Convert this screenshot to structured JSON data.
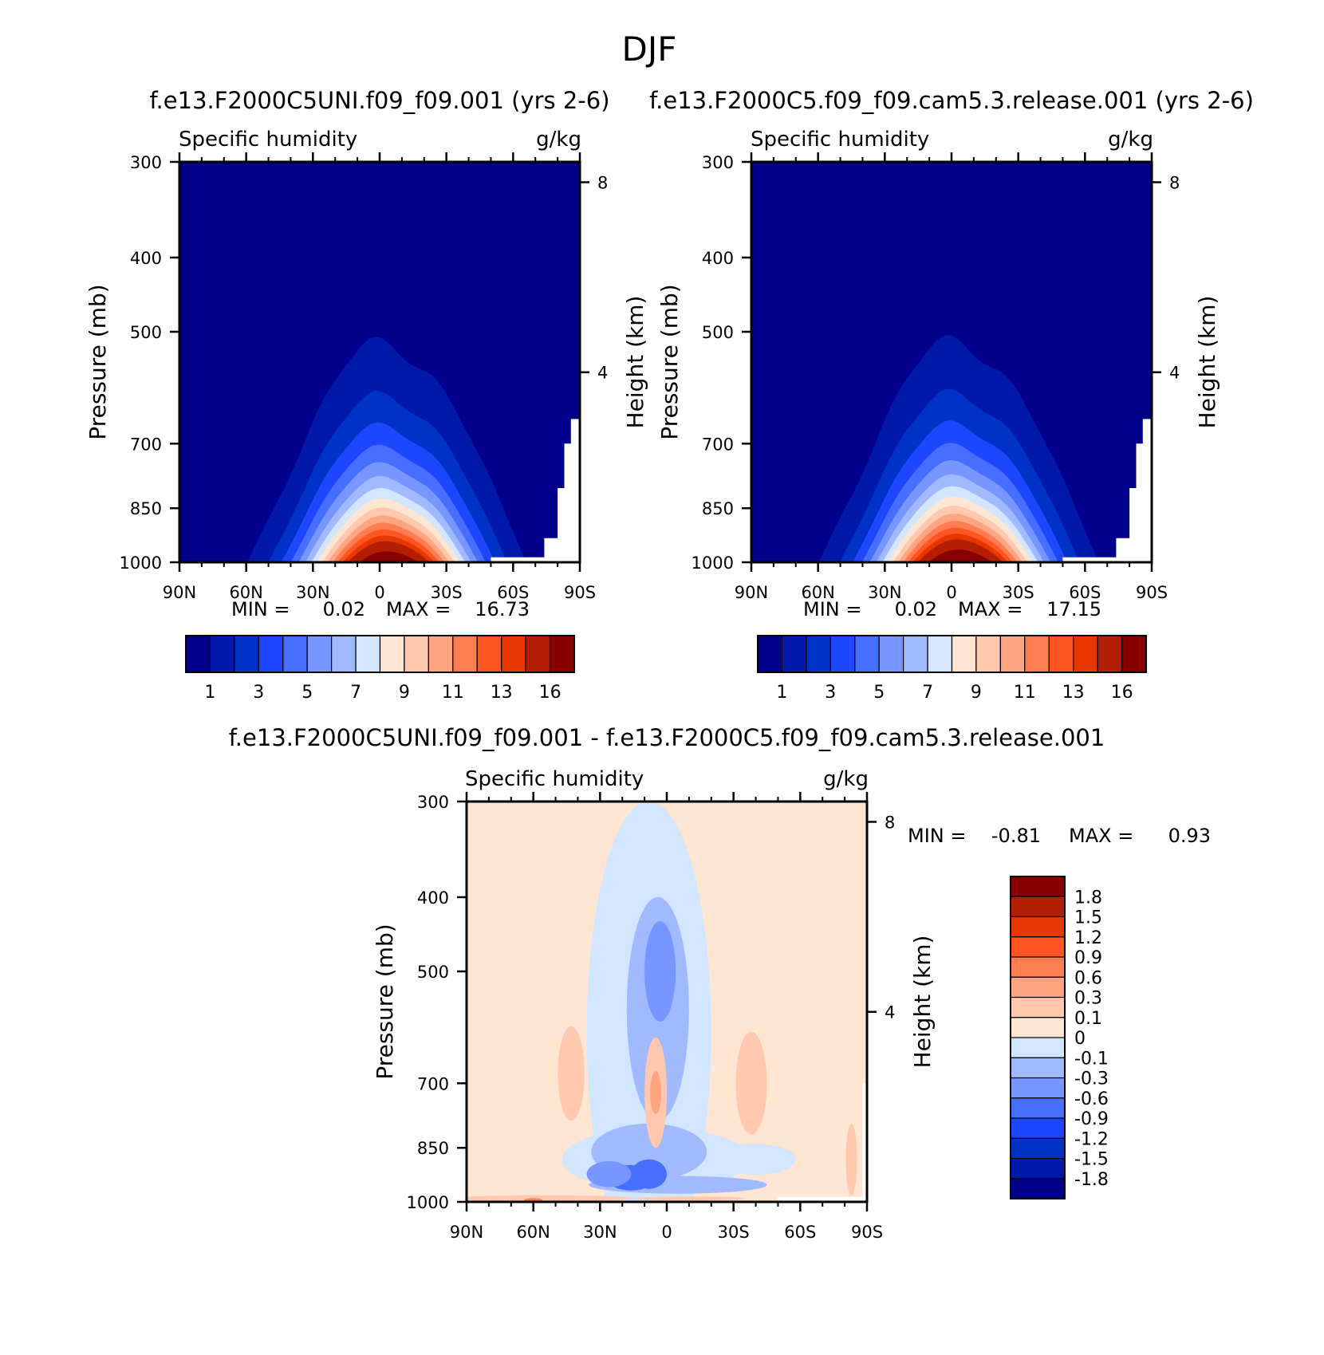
{
  "figure_title": "DJF",
  "chart_data": [
    {
      "id": "left",
      "type": "heatmap",
      "title": "f.e13.F2000C5UNI.f09_f09.001 (yrs 2-6)",
      "variable": "Specific humidity",
      "units": "g/kg",
      "ylabel": "Pressure (mb)",
      "ylabel_right": "Height (km)",
      "x_ticks": [
        "90N",
        "60N",
        "30N",
        "0",
        "30S",
        "60S",
        "90S"
      ],
      "x_values": [
        90,
        60,
        30,
        0,
        -30,
        -60,
        -90
      ],
      "y_ticks": [
        "300",
        "400",
        "500",
        "700",
        "850",
        "1000"
      ],
      "y_values": [
        300,
        400,
        500,
        700,
        850,
        1000
      ],
      "height_ticks": [
        "8",
        "4"
      ],
      "height_values_km": [
        8,
        4
      ],
      "min_label": "MIN =",
      "min_value": "0.02",
      "max_label": "MAX =",
      "max_value": "16.73",
      "peak_lat": 0,
      "peak_value": 16.73,
      "colorbar_labels": [
        "1",
        "3",
        "5",
        "7",
        "9",
        "11",
        "13",
        "16"
      ],
      "colorbar_levels": [
        1,
        2,
        3,
        4,
        5,
        6,
        7,
        8,
        9,
        10,
        11,
        12,
        13,
        14,
        16
      ]
    },
    {
      "id": "right",
      "type": "heatmap",
      "title": "f.e13.F2000C5.f09_f09.cam5.3.release.001 (yrs 2-6)",
      "variable": "Specific humidity",
      "units": "g/kg",
      "ylabel": "Pressure (mb)",
      "ylabel_right": "Height (km)",
      "x_ticks": [
        "90N",
        "60N",
        "30N",
        "0",
        "30S",
        "60S",
        "90S"
      ],
      "x_values": [
        90,
        60,
        30,
        0,
        -30,
        -60,
        -90
      ],
      "y_ticks": [
        "300",
        "400",
        "500",
        "700",
        "850",
        "1000"
      ],
      "y_values": [
        300,
        400,
        500,
        700,
        850,
        1000
      ],
      "height_ticks": [
        "8",
        "4"
      ],
      "height_values_km": [
        8,
        4
      ],
      "min_label": "MIN =",
      "min_value": "0.02",
      "max_label": "MAX =",
      "max_value": "17.15",
      "peak_lat": 0,
      "peak_value": 17.15,
      "colorbar_labels": [
        "1",
        "3",
        "5",
        "7",
        "9",
        "11",
        "13",
        "16"
      ],
      "colorbar_levels": [
        1,
        2,
        3,
        4,
        5,
        6,
        7,
        8,
        9,
        10,
        11,
        12,
        13,
        14,
        16
      ]
    },
    {
      "id": "diff",
      "type": "heatmap",
      "title": "f.e13.F2000C5UNI.f09_f09.001 - f.e13.F2000C5.f09_f09.cam5.3.release.001",
      "variable": "Specific humidity",
      "units": "g/kg",
      "ylabel": "Pressure (mb)",
      "ylabel_right": "Height (km)",
      "x_ticks": [
        "90N",
        "60N",
        "30N",
        "0",
        "30S",
        "60S",
        "90S"
      ],
      "x_values": [
        90,
        60,
        30,
        0,
        -30,
        -60,
        -90
      ],
      "y_ticks": [
        "300",
        "400",
        "500",
        "700",
        "850",
        "1000"
      ],
      "y_values": [
        300,
        400,
        500,
        700,
        850,
        1000
      ],
      "height_ticks": [
        "8",
        "4"
      ],
      "height_values_km": [
        8,
        4
      ],
      "min_label": "MIN =",
      "min_value": "-0.81",
      "max_label": "MAX =",
      "max_value": "0.93",
      "colorbar_labels": [
        "1.8",
        "1.5",
        "1.2",
        "0.9",
        "0.6",
        "0.3",
        "0.1",
        "0",
        "-0.1",
        "-0.3",
        "-0.6",
        "-0.9",
        "-1.2",
        "-1.5",
        "-1.8"
      ],
      "features": [
        {
          "lat": 5,
          "pressure": 720,
          "value": 0.6
        },
        {
          "lat": 8,
          "pressure": 920,
          "value": -0.81
        },
        {
          "lat": 16,
          "pressure": 930,
          "value": -0.8
        },
        {
          "lat": 3,
          "pressure": 500,
          "value": -0.5
        },
        {
          "lat": 43,
          "pressure": 680,
          "value": 0.3
        },
        {
          "lat": -38,
          "pressure": 700,
          "value": 0.3
        }
      ]
    }
  ],
  "colors": {
    "humidity_scale": [
      "#00008b",
      "#0019a8",
      "#0032c8",
      "#1e46ff",
      "#466eff",
      "#7896ff",
      "#a0b9ff",
      "#d2e6ff",
      "#ffe6d2",
      "#ffc8af",
      "#ffa582",
      "#ff7d50",
      "#ff5523",
      "#e63700",
      "#b41e00",
      "#870000"
    ],
    "diff_scale": [
      "#870000",
      "#b41e00",
      "#e63700",
      "#ff5523",
      "#ff7d50",
      "#ffa582",
      "#ffc8af",
      "#ffe6d2",
      "#d2e6ff",
      "#a0b9ff",
      "#7896ff",
      "#466eff",
      "#1e46ff",
      "#0032c8",
      "#0019a8",
      "#00008b"
    ]
  }
}
